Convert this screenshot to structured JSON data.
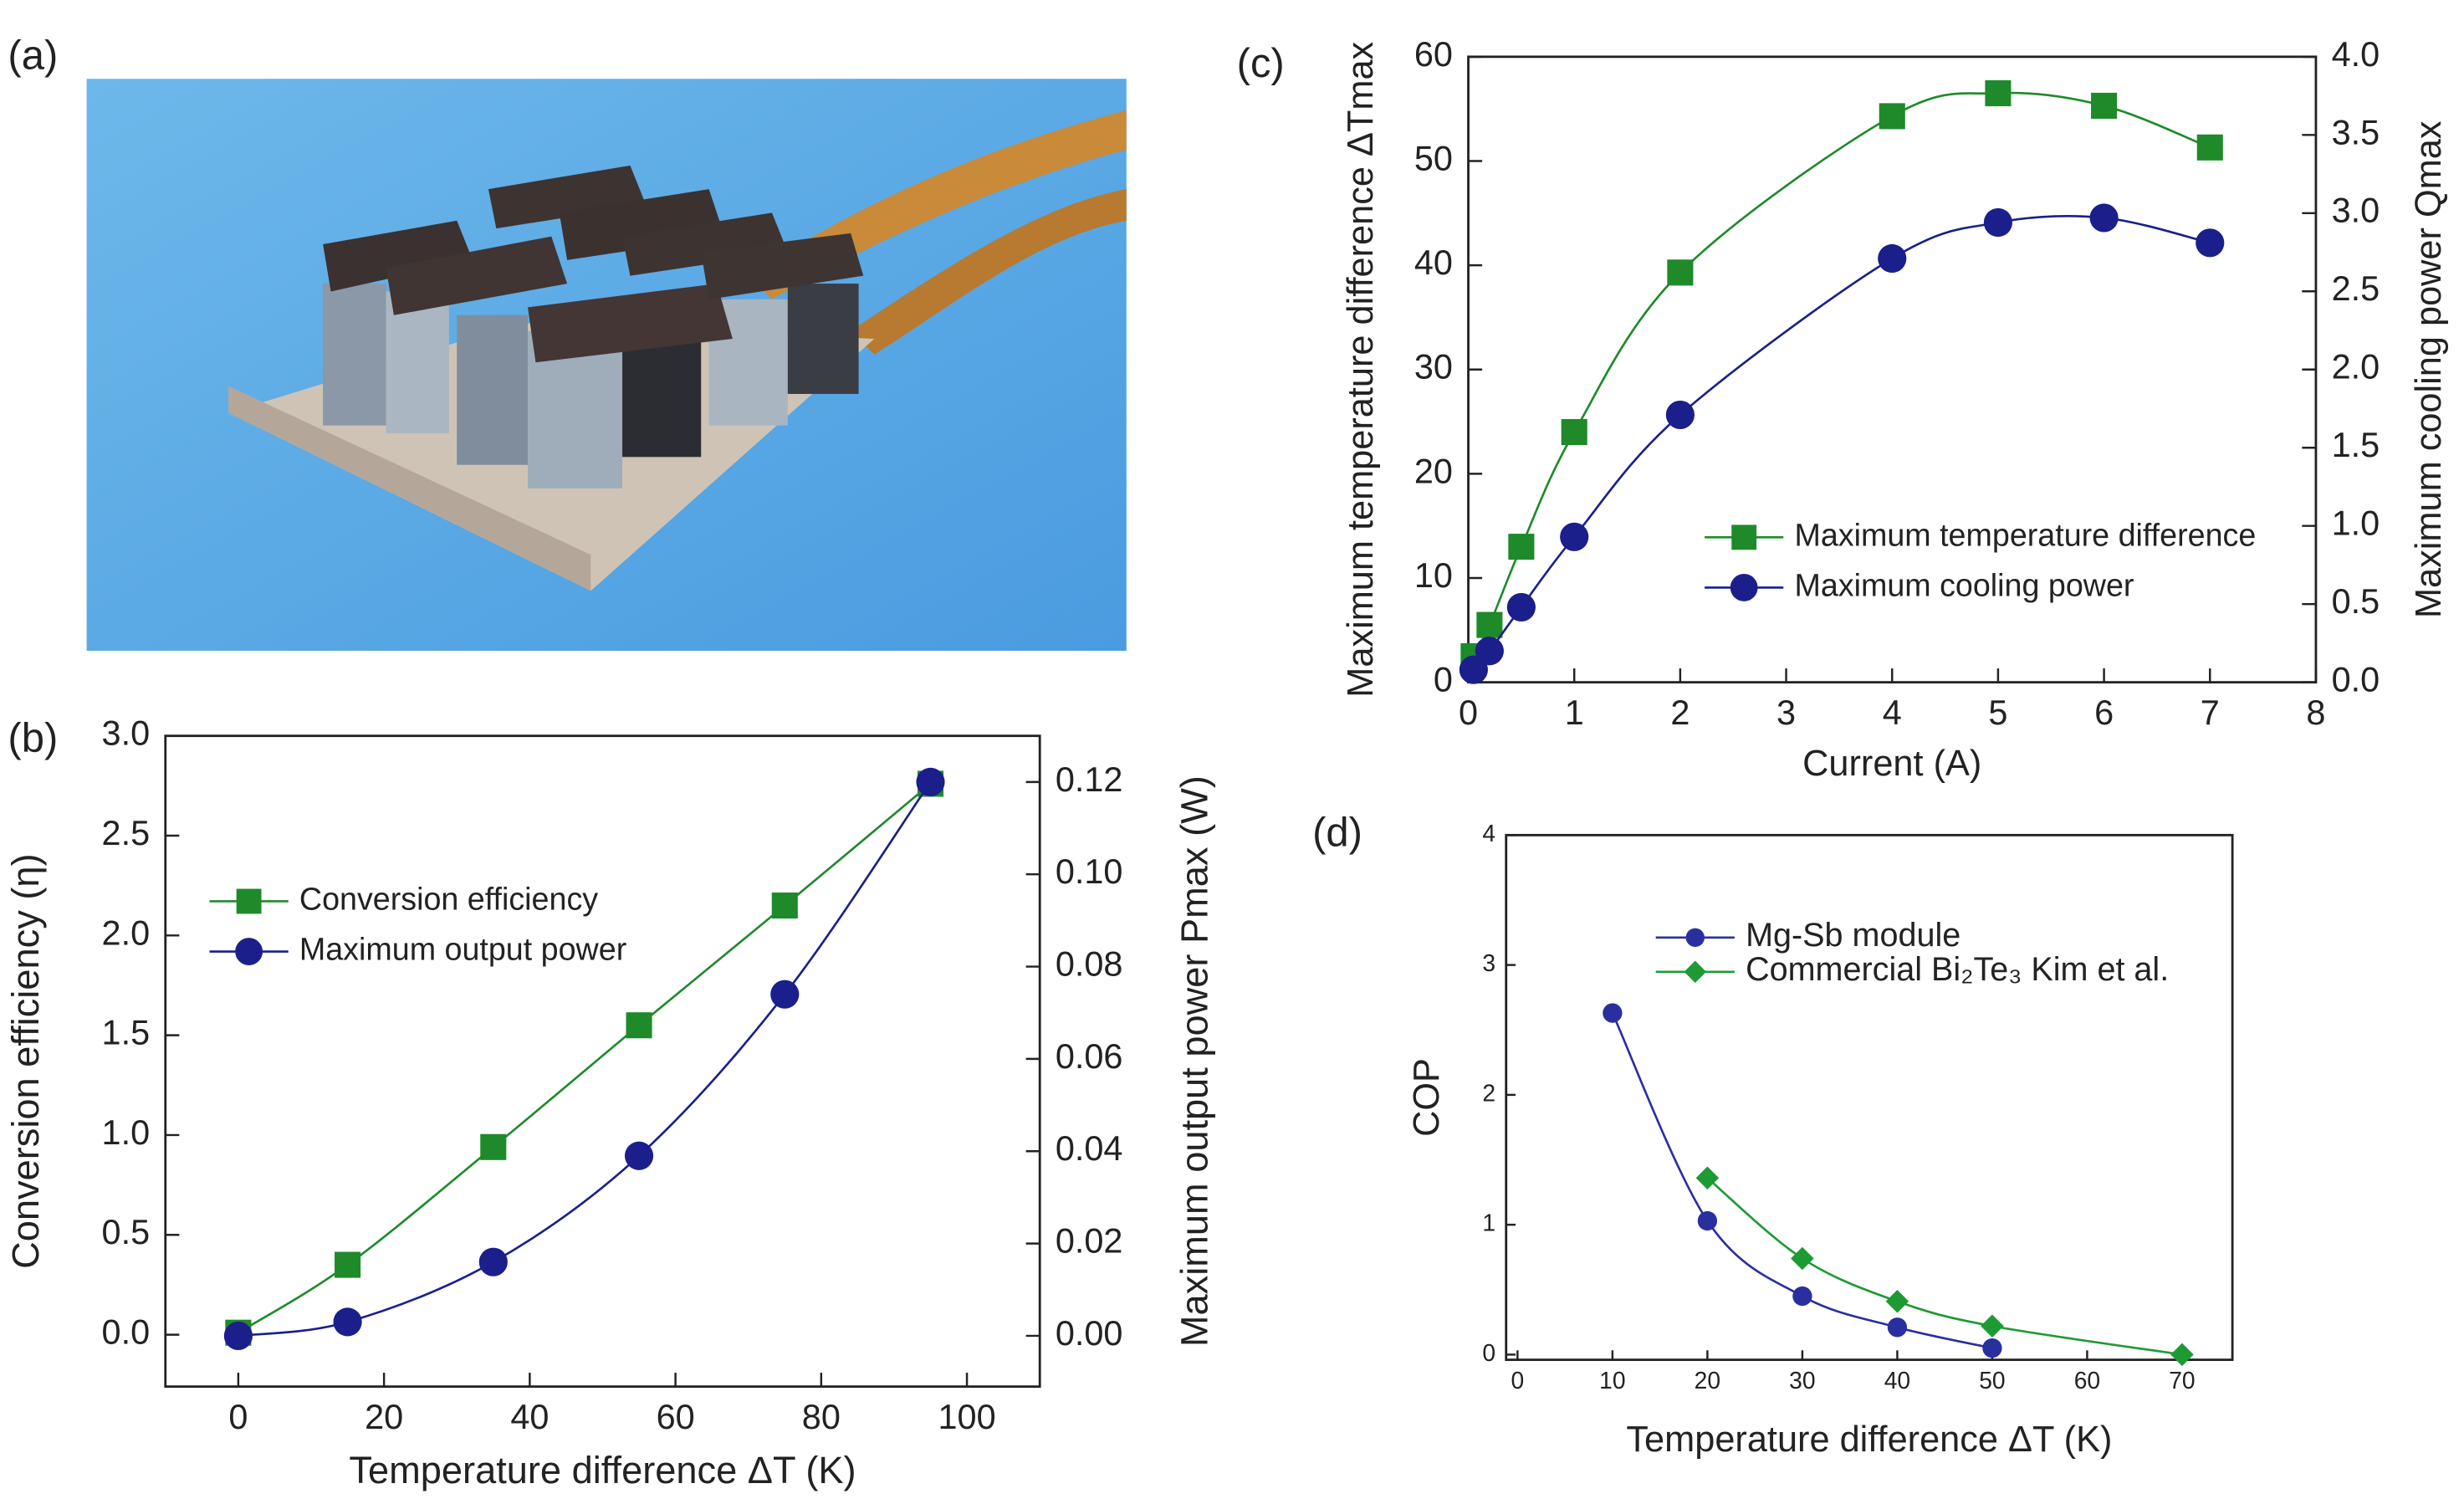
{
  "photo": {
    "label": "(a)"
  },
  "chart_data": [
    {
      "type": "line",
      "panel_label": "(b)",
      "xlabel": "Temperature difference ΔT (K)",
      "ylabel": "Conversion efficiency (η)",
      "y2label": "Maximum output power Pmax (W)",
      "x": [
        0,
        15,
        35,
        55,
        75,
        95
      ],
      "xlim": [
        -10,
        110
      ],
      "xticks": [
        0,
        20,
        40,
        60,
        80,
        100
      ],
      "ylim": [
        -0.26,
        3.0
      ],
      "yticks": [
        {
          "value": 0,
          "label": "0.0"
        },
        0.5,
        {
          "value": 1,
          "label": "1.0"
        },
        1.5,
        {
          "value": 2,
          "label": "2.0"
        },
        2.5,
        {
          "value": 3,
          "label": "3.0"
        }
      ],
      "y2lim": [
        -0.011,
        0.13
      ],
      "y2ticks": [
        {
          "value": 0,
          "label": "0.00"
        },
        0.02,
        0.04,
        0.06,
        0.08,
        {
          "value": 0.1,
          "label": "0.10"
        },
        0.12
      ],
      "legend": "upper left",
      "series": [
        {
          "name": "Conversion efficiency",
          "color": "#1e8a2a",
          "marker": "square",
          "values": [
            0.01,
            0.35,
            0.94,
            1.55,
            2.15,
            2.76
          ]
        },
        {
          "name": "Maximum output power",
          "color": "#1a1f8c",
          "marker": "circle",
          "axis": "y2",
          "values": [
            0.0,
            0.003,
            0.016,
            0.039,
            0.074,
            0.12
          ]
        }
      ]
    },
    {
      "type": "line",
      "panel_label": "(c)",
      "xlabel": "Current (A)",
      "ylabel": "Maximum temperature difference ΔTmax",
      "y2label": "Maximum cooling power Qmax",
      "x": [
        0.05,
        0.2,
        0.5,
        1,
        2,
        4,
        5,
        6,
        7
      ],
      "xlim": [
        0,
        8
      ],
      "xticks": [
        0,
        1,
        2,
        3,
        4,
        5,
        6,
        7,
        8
      ],
      "ylim": [
        0,
        60
      ],
      "yticks": [
        0,
        10,
        20,
        30,
        40,
        50,
        60
      ],
      "y2lim": [
        0,
        4
      ],
      "y2ticks": [
        {
          "value": 0,
          "label": "0.0"
        },
        0.5,
        {
          "value": 1,
          "label": "1.0"
        },
        1.5,
        {
          "value": 2,
          "label": "2.0"
        },
        2.5,
        {
          "value": 3,
          "label": "3.0"
        },
        3.5,
        {
          "value": 4,
          "label": "4.0"
        }
      ],
      "legend": "center right",
      "series": [
        {
          "name": "Maximum temperature difference",
          "color": "#1e8a2a",
          "marker": "square",
          "values": [
            2.5,
            5.5,
            13,
            24,
            39.3,
            54.3,
            56.5,
            55.3,
            51.3
          ]
        },
        {
          "name": "Maximum cooling power",
          "color": "#1a1f8c",
          "marker": "circle",
          "axis": "y2",
          "values": [
            0.08,
            0.2,
            0.48,
            0.93,
            1.71,
            2.71,
            2.94,
            2.97,
            2.81
          ]
        }
      ]
    },
    {
      "type": "line",
      "panel_label": "(d)",
      "xlabel": "Temperature difference ΔT (K)",
      "ylabel": "COP",
      "xlim": [
        -1.2,
        75.3
      ],
      "xticks": [
        0,
        10,
        20,
        30,
        40,
        50,
        60,
        70
      ],
      "ylim": [
        -0.04,
        4
      ],
      "yticks": [
        0,
        1,
        2,
        3,
        4
      ],
      "legend": "upper right",
      "series": [
        {
          "name": "Mg-Sb module",
          "color": "#2a2fa0",
          "marker": "circle",
          "x": [
            10,
            20,
            30,
            40,
            50
          ],
          "values": [
            2.63,
            1.03,
            0.45,
            0.21,
            0.05
          ]
        },
        {
          "name": "Commercial Bi₂Te₃ Kim et al.",
          "color": "#1e9a34",
          "marker": "diamond",
          "x": [
            20,
            30,
            40,
            50,
            70
          ],
          "values": [
            1.36,
            0.74,
            0.41,
            0.22,
            0.0
          ]
        }
      ]
    }
  ]
}
